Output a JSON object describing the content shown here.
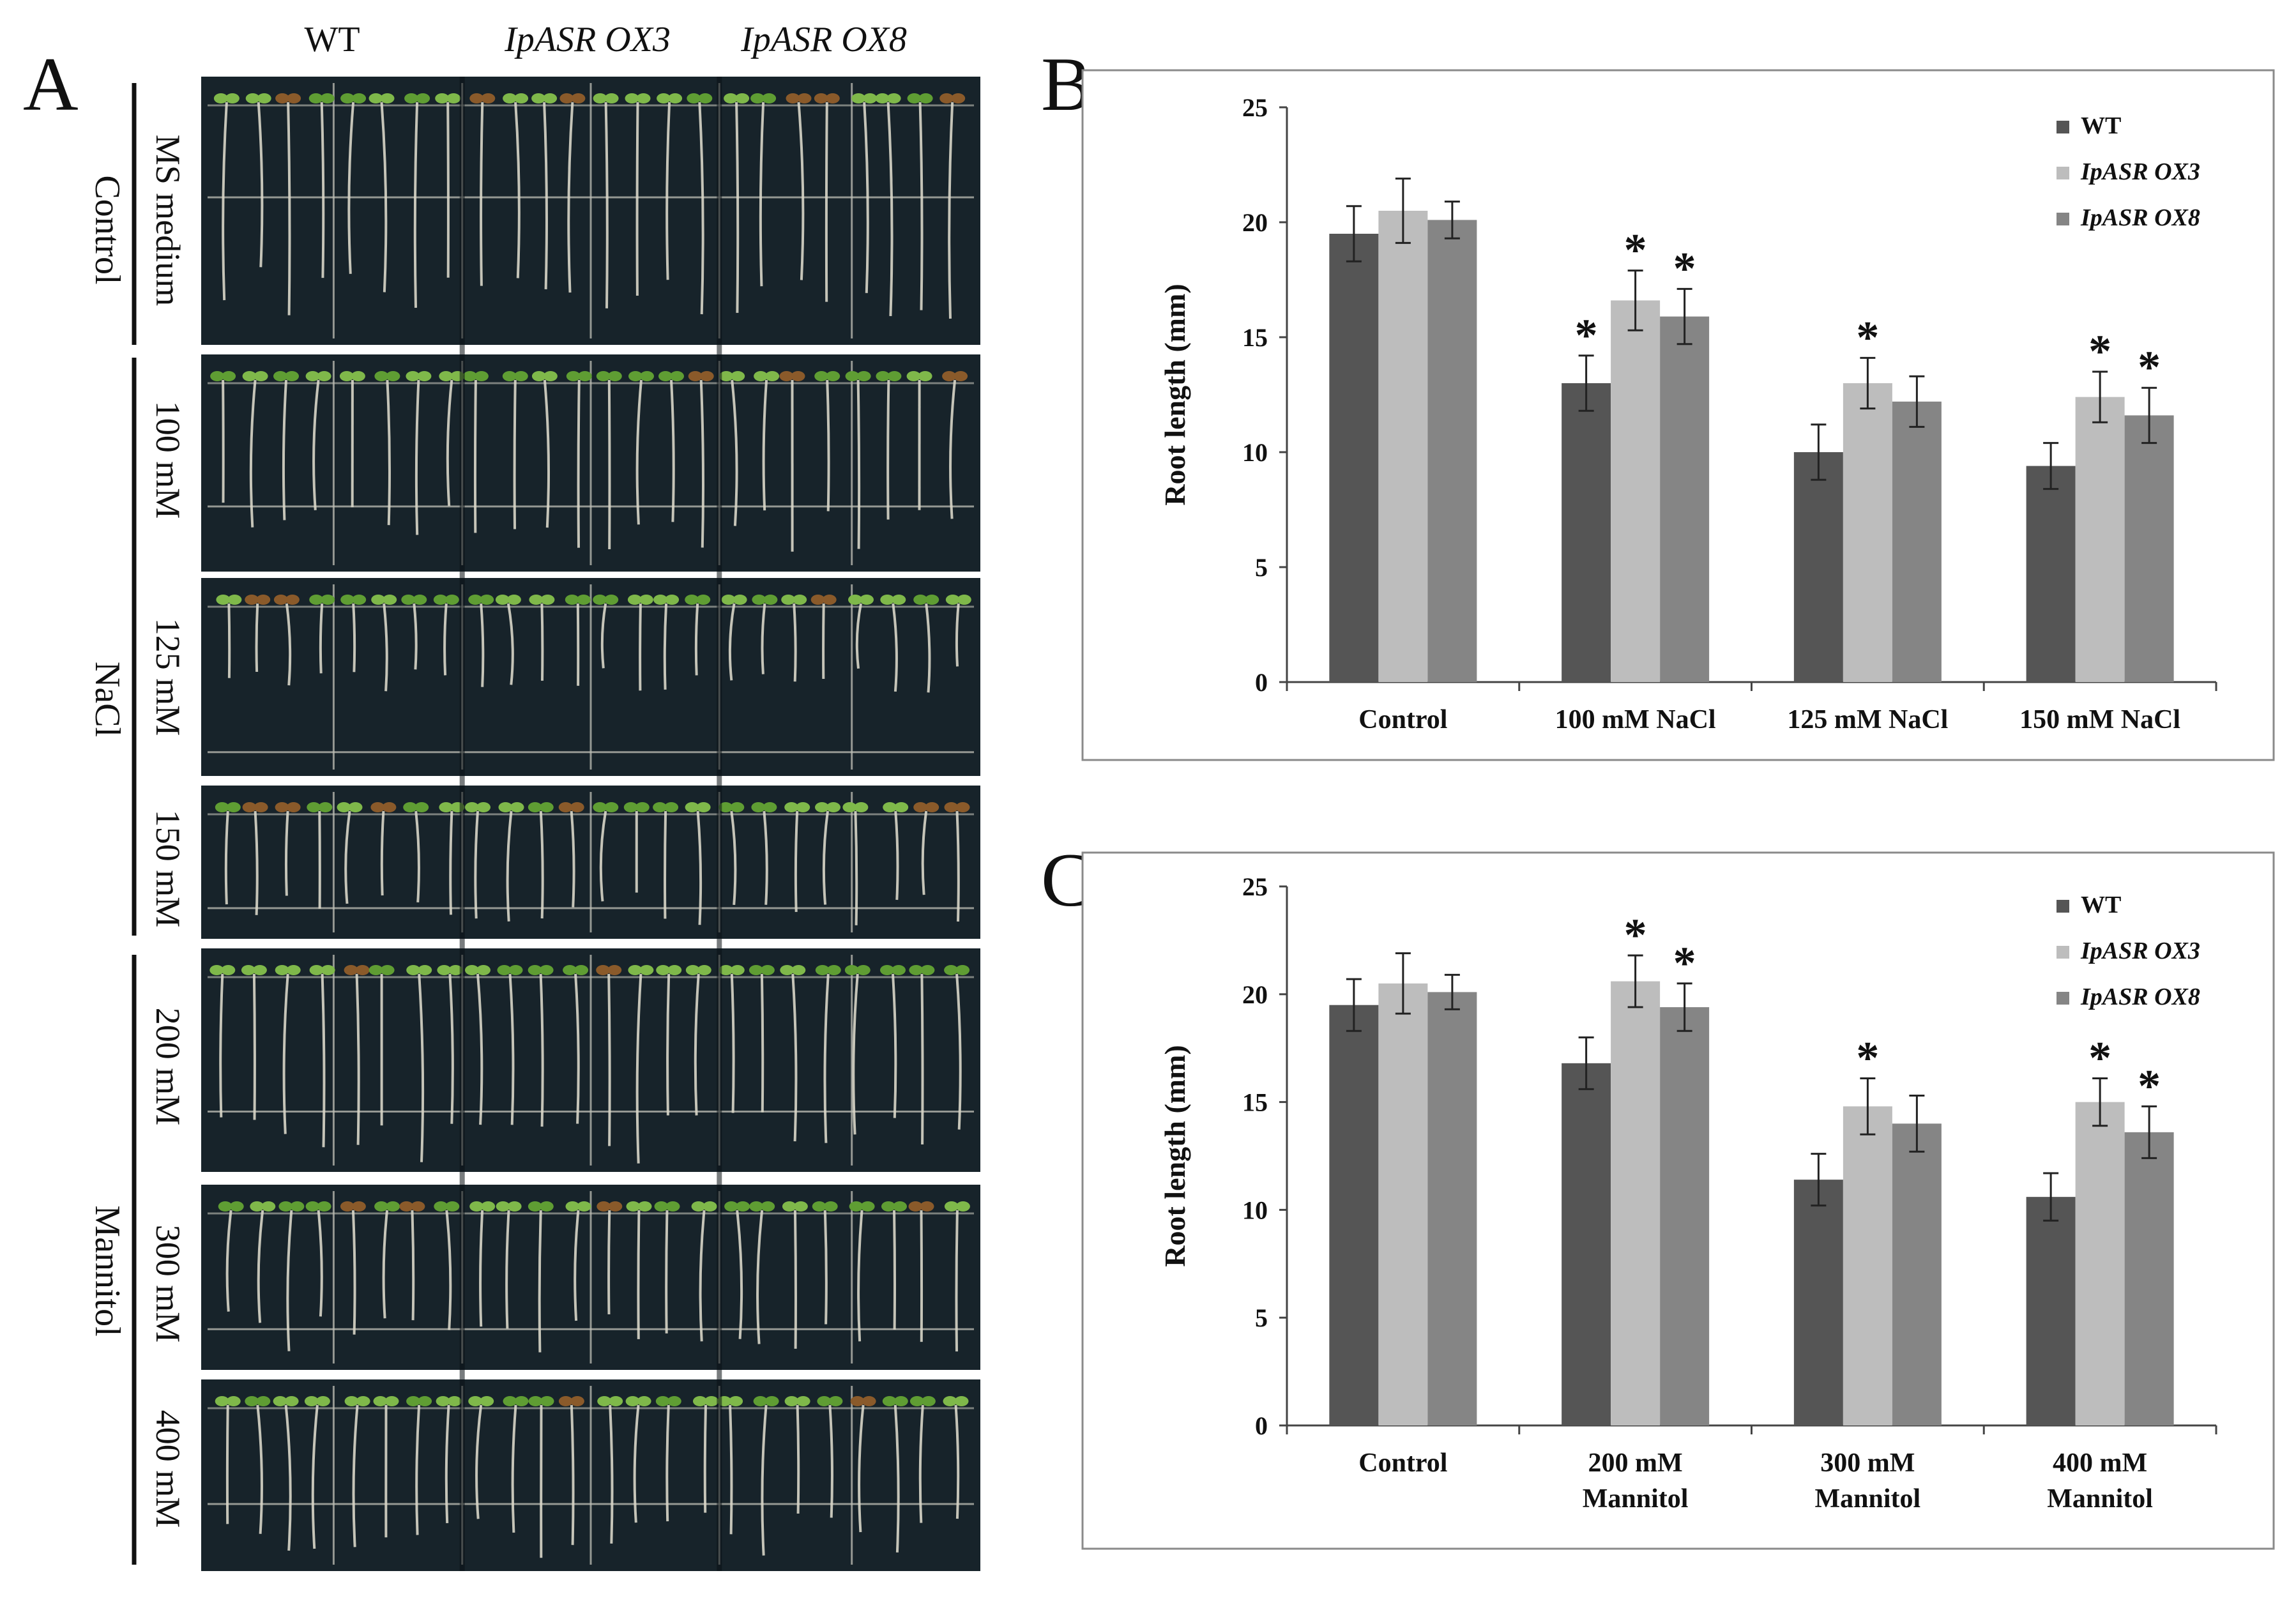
{
  "panel_letters": {
    "a": "A",
    "b": "B",
    "c": "C"
  },
  "photo_panel": {
    "genotype_headers": [
      "WT",
      "IpASR OX3",
      "IpASR OX8"
    ],
    "treatment_groups": [
      "Control",
      "NaCl",
      "Mannitol"
    ],
    "row_labels": [
      "MS medium",
      "100 mM",
      "125 mM",
      "150 mM",
      "200 mM",
      "300 mM",
      "400 mM"
    ]
  },
  "colors": {
    "wt": "#555555",
    "ox3": "#bdbdbd",
    "ox8": "#858585",
    "plate_bg": "#17232a",
    "root": "#d8d6c8",
    "grid": "#bfc0b7"
  },
  "chart_data": [
    {
      "id": "B",
      "type": "bar",
      "categories": [
        "Control",
        "100 mM NaCl",
        "125 mM NaCl",
        "150 mM NaCl"
      ],
      "series": [
        {
          "name": "WT",
          "values": [
            19.5,
            13.0,
            10.0,
            9.4
          ],
          "errors": [
            1.2,
            1.2,
            1.2,
            1.0
          ]
        },
        {
          "name": "IpASR OX3",
          "values": [
            20.5,
            16.6,
            13.0,
            12.4
          ],
          "errors": [
            1.4,
            1.3,
            1.1,
            1.1
          ]
        },
        {
          "name": "IpASR OX8",
          "values": [
            20.1,
            15.9,
            12.2,
            11.6
          ],
          "errors": [
            0.8,
            1.2,
            1.1,
            1.2
          ]
        }
      ],
      "significance_marker": "*",
      "significant": [
        [
          false,
          true,
          false,
          false
        ],
        [
          false,
          true,
          true,
          true
        ],
        [
          false,
          true,
          false,
          true
        ]
      ],
      "ylabel": "Root length (mm)",
      "xlabel": "",
      "ylim": [
        0,
        25
      ],
      "yticks": [
        0,
        5,
        10,
        15,
        20,
        25
      ],
      "legend_position": "top-right"
    },
    {
      "id": "C",
      "type": "bar",
      "categories": [
        "Control",
        "200 mM Mannitol",
        "300 mM Mannitol",
        "400 mM Mannitol"
      ],
      "series": [
        {
          "name": "WT",
          "values": [
            19.5,
            16.8,
            11.4,
            10.6
          ],
          "errors": [
            1.2,
            1.2,
            1.2,
            1.1
          ]
        },
        {
          "name": "IpASR OX3",
          "values": [
            20.5,
            20.6,
            14.8,
            15.0
          ],
          "errors": [
            1.4,
            1.2,
            1.3,
            1.1
          ]
        },
        {
          "name": "IpASR OX8",
          "values": [
            20.1,
            19.4,
            14.0,
            13.6
          ],
          "errors": [
            0.8,
            1.1,
            1.3,
            1.2
          ]
        }
      ],
      "significance_marker": "*",
      "significant": [
        [
          false,
          false,
          false,
          false
        ],
        [
          false,
          true,
          true,
          true
        ],
        [
          false,
          true,
          false,
          true
        ]
      ],
      "ylabel": "Root length (mm)",
      "xlabel": "",
      "ylim": [
        0,
        25
      ],
      "yticks": [
        0,
        5,
        10,
        15,
        20,
        25
      ],
      "legend_position": "top-right"
    }
  ]
}
